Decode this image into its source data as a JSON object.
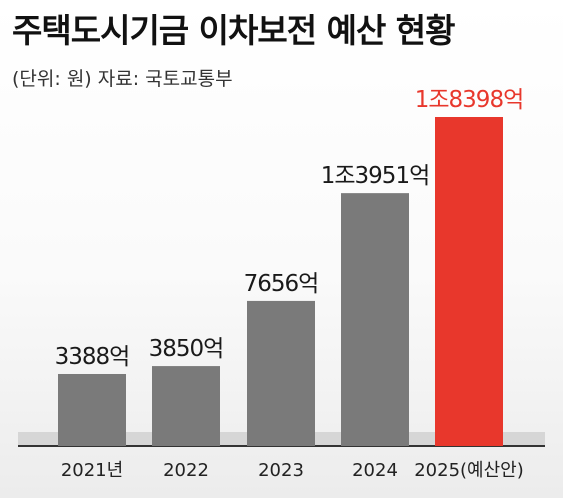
{
  "header": {
    "title": "주택도시기금 이차보전 예산 현황",
    "subtitle": "(단위: 원) 자료: 국토교통부"
  },
  "colors": {
    "bar_default": "#7a7a7a",
    "bar_highlight": "#e8372c",
    "label_highlight": "#e8372c",
    "baseline": "#333333"
  },
  "chart_data": {
    "type": "bar",
    "title": "주택도시기금 이차보전 예산 현황",
    "subtitle": "(단위: 원) 자료: 국토교통부",
    "categories": [
      "2021년",
      "2022",
      "2023",
      "2024",
      "2025(예산안)"
    ],
    "values": [
      3388,
      3850,
      7656,
      13951,
      18398
    ],
    "value_unit": "억 원",
    "data_labels": [
      "3388억",
      "3850억",
      "7656억",
      "1조3951억",
      "1조8398억"
    ],
    "highlight_index": 4,
    "xlabel": "",
    "ylabel": "",
    "ylim": [
      0,
      19000
    ],
    "grid": false,
    "legend": "none"
  }
}
